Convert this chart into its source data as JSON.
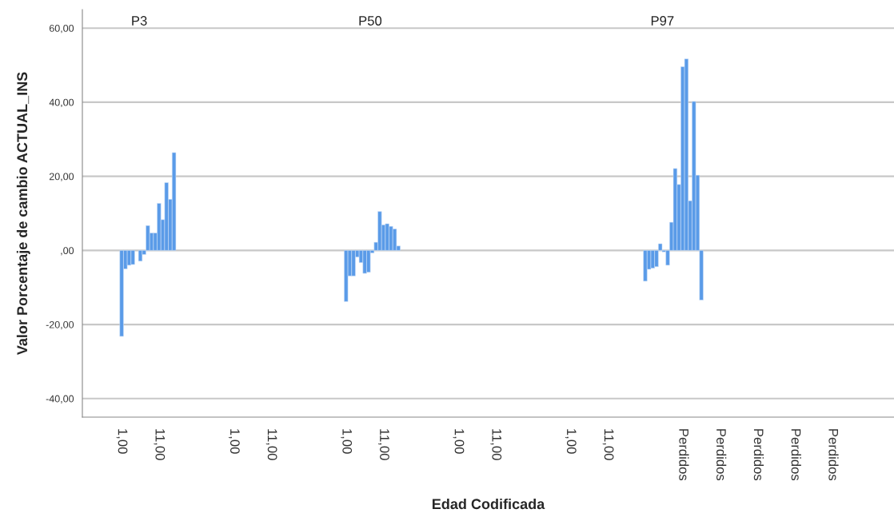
{
  "chart_data": {
    "type": "bar",
    "xlabel": "Edad Codificada",
    "ylabel": "Valor Porcentaje de cambio ACTUAL_INS",
    "annotations": [
      "P3",
      "P50",
      "P97"
    ],
    "categories": [
      null,
      null,
      null,
      null,
      null,
      null,
      null,
      null,
      null,
      null,
      "1,00",
      null,
      null,
      null,
      null,
      null,
      null,
      null,
      null,
      null,
      "11,00",
      null,
      null,
      null,
      null,
      null,
      null,
      null,
      null,
      null,
      null,
      null,
      null,
      null,
      null,
      null,
      null,
      null,
      null,
      null,
      "1,00",
      null,
      null,
      null,
      null,
      null,
      null,
      null,
      null,
      null,
      "11,00",
      null,
      null,
      null,
      null,
      null,
      null,
      null,
      null,
      null,
      null,
      null,
      null,
      null,
      null,
      null,
      null,
      null,
      null,
      null,
      "1,00",
      null,
      null,
      null,
      null,
      null,
      null,
      null,
      null,
      null,
      "11,00",
      null,
      null,
      null,
      null,
      null,
      null,
      null,
      null,
      null,
      null,
      null,
      null,
      null,
      null,
      null,
      null,
      null,
      null,
      null,
      "1,00",
      null,
      null,
      null,
      null,
      null,
      null,
      null,
      null,
      null,
      "11,00",
      null,
      null,
      null,
      null,
      null,
      null,
      null,
      null,
      null,
      null,
      null,
      null,
      null,
      null,
      null,
      null,
      null,
      null,
      null,
      "1,00",
      null,
      null,
      null,
      null,
      null,
      null,
      null,
      null,
      null,
      "11,00",
      null,
      null,
      null,
      null,
      null,
      null,
      null,
      null,
      null,
      null,
      null,
      null,
      null,
      null,
      null,
      null,
      null,
      null,
      null,
      "Perdidos",
      null,
      null,
      null,
      null,
      null,
      null,
      null,
      null,
      null,
      "Perdidos",
      null,
      null,
      null,
      null,
      null,
      null,
      null,
      null,
      null,
      "Perdidos",
      null,
      null,
      null,
      null,
      null,
      null,
      null,
      null,
      null,
      "Perdidos",
      null,
      null,
      null,
      null,
      null,
      null,
      null,
      null,
      null,
      "Perdidos",
      null,
      null,
      null,
      null,
      null,
      null,
      null,
      null,
      null,
      null,
      null,
      null,
      null,
      null,
      null,
      null
    ],
    "values": [
      null,
      null,
      null,
      null,
      null,
      null,
      null,
      null,
      null,
      null,
      -23.2,
      -5.0,
      -4.0,
      -3.8,
      null,
      -2.9,
      -1.1,
      6.7,
      4.7,
      4.7,
      12.7,
      8.3,
      18.3,
      13.8,
      26.4,
      null,
      null,
      null,
      null,
      null,
      null,
      null,
      null,
      null,
      null,
      null,
      null,
      null,
      null,
      null,
      null,
      null,
      null,
      null,
      null,
      null,
      null,
      null,
      null,
      null,
      null,
      null,
      null,
      null,
      null,
      null,
      null,
      null,
      null,
      null,
      null,
      null,
      null,
      null,
      null,
      null,
      null,
      null,
      null,
      null,
      -13.8,
      -6.9,
      -6.9,
      -1.8,
      -3.3,
      -6.2,
      -5.9,
      -0.7,
      2.2,
      10.5,
      6.9,
      7.2,
      6.5,
      5.8,
      1.2,
      null,
      null,
      null,
      null,
      null,
      null,
      null,
      null,
      null,
      null,
      null,
      null,
      null,
      null,
      null,
      null,
      null,
      null,
      null,
      null,
      null,
      null,
      null,
      null,
      null,
      null,
      null,
      null,
      null,
      null,
      null,
      null,
      null,
      null,
      null,
      null,
      null,
      null,
      null,
      null,
      null,
      null,
      null,
      null,
      null,
      null,
      null,
      null,
      null,
      null,
      null,
      null,
      null,
      null,
      null,
      null,
      null,
      null,
      null,
      null,
      null,
      null,
      null,
      null,
      null,
      -8.3,
      -5.1,
      -4.8,
      -4.4,
      1.8,
      -0.4,
      -4.0,
      7.6,
      22.1,
      17.8,
      49.6,
      51.7,
      13.4,
      40.2,
      20.3,
      -13.4,
      null,
      null,
      null,
      null,
      null,
      null,
      null,
      null,
      null,
      null,
      null,
      null,
      null,
      null,
      null,
      null,
      null,
      null,
      null,
      null,
      null,
      null,
      null,
      null,
      null,
      null,
      null,
      null,
      null,
      null,
      null,
      null,
      null,
      null,
      null,
      null,
      null,
      null,
      null,
      null,
      null,
      null,
      null,
      null,
      null,
      null,
      null,
      null,
      null,
      null,
      null
    ],
    "color": "#5a9be8",
    "ylim": [
      -45,
      65
    ],
    "yticks": [
      {
        "value": -40,
        "label": "-40,00"
      },
      {
        "value": -20,
        "label": "-20,00"
      },
      {
        "value": 0,
        "label": ",00"
      },
      {
        "value": 20,
        "label": "20,00"
      },
      {
        "value": 40,
        "label": "40,00"
      },
      {
        "value": 60,
        "label": "60,00"
      }
    ],
    "grid": "y",
    "legend": false
  }
}
